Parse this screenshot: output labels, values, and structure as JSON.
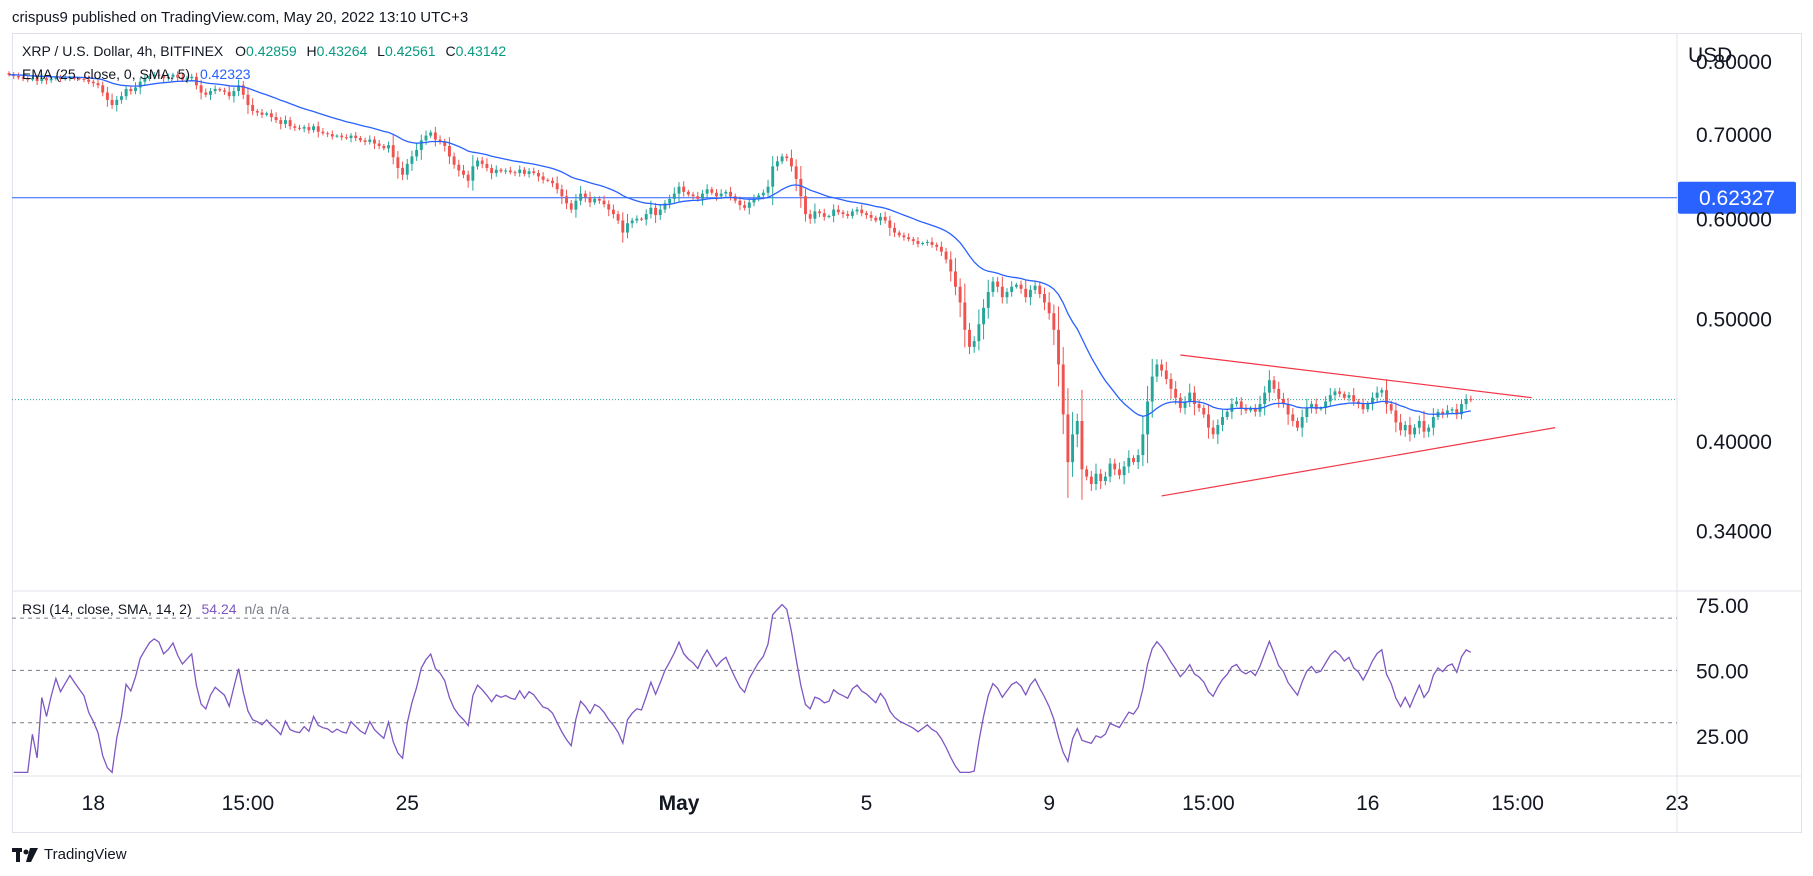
{
  "header": {
    "published_by": "crispus9 published on TradingView.com, May 20, 2022 13:10 UTC+3"
  },
  "legend": {
    "symbol": "XRP / U.S. Dollar, 4h, BITFINEX",
    "open_label": "O",
    "open_value": "0.42859",
    "high_label": "H",
    "high_value": "0.43264",
    "low_label": "L",
    "low_value": "0.42561",
    "close_label": "C",
    "close_value": "0.43142",
    "ema_label": "EMA (25, close, 0, SMA, 5)",
    "ema_value": "0.42323",
    "rsi_label": "RSI (14, close, SMA, 14, 2)",
    "rsi_value": "54.24",
    "rsi_na1": "n/a",
    "rsi_na2": "n/a"
  },
  "footer": {
    "brand": "TradingView"
  },
  "colors": {
    "up": "#26a69a",
    "down": "#ef5350",
    "ema": "#2962ff",
    "rsi": "#7e57c2",
    "level": "#2962ff",
    "triangle": "#f23645",
    "grid_dashed": "#787b86",
    "last_price": "#26a69a"
  },
  "chart_data": {
    "type": "candlestick",
    "title": "XRP / U.S. Dollar, 4h, BITFINEX",
    "currency": "USD",
    "price_ticks": [
      "0.80000",
      "0.70000",
      "0.60000",
      "0.50000",
      "0.40000",
      "0.34000"
    ],
    "price_ticks_numeric": [
      0.8,
      0.7,
      0.6,
      0.5,
      0.4,
      0.34
    ],
    "price_scale": "log",
    "price_range": [
      0.305,
      0.84
    ],
    "horizontal_level": {
      "value": 0.62327,
      "label": "0.62327"
    },
    "last_price": 0.43142,
    "x_ticks": [
      "18",
      "15:00",
      "25",
      "May",
      "5",
      "9",
      "15:00",
      "16",
      "15:00",
      "23"
    ],
    "x_tick_indices": [
      18,
      51,
      85,
      143,
      183,
      222,
      256,
      290,
      322,
      356
    ],
    "x_range_bars": [
      0,
      356
    ],
    "closes": [
      0.78,
      0.778,
      0.776,
      0.775,
      0.773,
      0.775,
      0.771,
      0.775,
      0.772,
      0.774,
      0.776,
      0.774,
      0.775,
      0.776,
      0.775,
      0.774,
      0.773,
      0.77,
      0.768,
      0.765,
      0.755,
      0.745,
      0.738,
      0.745,
      0.75,
      0.76,
      0.757,
      0.762,
      0.77,
      0.774,
      0.778,
      0.78,
      0.779,
      0.775,
      0.777,
      0.78,
      0.776,
      0.773,
      0.775,
      0.777,
      0.765,
      0.755,
      0.752,
      0.757,
      0.76,
      0.758,
      0.756,
      0.75,
      0.757,
      0.765,
      0.752,
      0.738,
      0.73,
      0.728,
      0.725,
      0.727,
      0.722,
      0.718,
      0.713,
      0.718,
      0.71,
      0.708,
      0.707,
      0.709,
      0.705,
      0.71,
      0.703,
      0.701,
      0.7,
      0.697,
      0.698,
      0.696,
      0.695,
      0.698,
      0.695,
      0.692,
      0.69,
      0.693,
      0.688,
      0.685,
      0.682,
      0.686,
      0.671,
      0.658,
      0.65,
      0.663,
      0.672,
      0.68,
      0.692,
      0.698,
      0.702,
      0.693,
      0.69,
      0.685,
      0.672,
      0.662,
      0.655,
      0.65,
      0.643,
      0.66,
      0.667,
      0.663,
      0.658,
      0.652,
      0.656,
      0.654,
      0.655,
      0.653,
      0.652,
      0.656,
      0.651,
      0.654,
      0.652,
      0.648,
      0.644,
      0.643,
      0.64,
      0.633,
      0.625,
      0.617,
      0.61,
      0.62,
      0.628,
      0.624,
      0.618,
      0.622,
      0.62,
      0.616,
      0.61,
      0.605,
      0.598,
      0.585,
      0.595,
      0.598,
      0.6,
      0.599,
      0.605,
      0.612,
      0.604,
      0.61,
      0.617,
      0.622,
      0.628,
      0.636,
      0.63,
      0.627,
      0.625,
      0.622,
      0.628,
      0.633,
      0.629,
      0.625,
      0.628,
      0.63,
      0.625,
      0.62,
      0.615,
      0.612,
      0.618,
      0.622,
      0.626,
      0.629,
      0.636,
      0.66,
      0.666,
      0.672,
      0.67,
      0.66,
      0.645,
      0.625,
      0.605,
      0.6,
      0.608,
      0.606,
      0.602,
      0.603,
      0.61,
      0.607,
      0.605,
      0.603,
      0.608,
      0.61,
      0.606,
      0.604,
      0.601,
      0.598,
      0.602,
      0.598,
      0.59,
      0.585,
      0.582,
      0.58,
      0.578,
      0.576,
      0.573,
      0.574,
      0.575,
      0.572,
      0.57,
      0.565,
      0.557,
      0.545,
      0.53,
      0.515,
      0.49,
      0.475,
      0.48,
      0.495,
      0.51,
      0.525,
      0.535,
      0.53,
      0.52,
      0.525,
      0.53,
      0.532,
      0.528,
      0.52,
      0.527,
      0.531,
      0.523,
      0.515,
      0.505,
      0.49,
      0.46,
      0.42,
      0.385,
      0.405,
      0.415,
      0.38,
      0.375,
      0.37,
      0.377,
      0.372,
      0.375,
      0.384,
      0.38,
      0.376,
      0.382,
      0.388,
      0.385,
      0.39,
      0.405,
      0.43,
      0.45,
      0.46,
      0.455,
      0.448,
      0.44,
      0.433,
      0.425,
      0.43,
      0.437,
      0.428,
      0.425,
      0.42,
      0.41,
      0.405,
      0.412,
      0.418,
      0.422,
      0.428,
      0.43,
      0.425,
      0.423,
      0.425,
      0.422,
      0.428,
      0.437,
      0.447,
      0.44,
      0.432,
      0.428,
      0.42,
      0.415,
      0.41,
      0.418,
      0.425,
      0.428,
      0.424,
      0.425,
      0.43,
      0.435,
      0.438,
      0.436,
      0.433,
      0.435,
      0.43,
      0.428,
      0.424,
      0.428,
      0.433,
      0.437,
      0.439,
      0.428,
      0.423,
      0.414,
      0.408,
      0.412,
      0.405,
      0.41,
      0.415,
      0.407,
      0.41,
      0.418,
      0.422,
      0.42,
      0.423,
      0.424,
      0.42,
      0.428,
      0.432,
      0.431
    ],
    "ema_series_name": "EMA (25, close, 0, SMA, 5)",
    "rsi": {
      "name": "RSI (14, close, SMA, 14, 2)",
      "ticks": [
        "75.00",
        "50.00",
        "25.00"
      ],
      "ticks_numeric": [
        75,
        50,
        25
      ],
      "range": [
        10,
        80
      ],
      "bands": [
        70,
        50,
        30
      ]
    },
    "triangle": {
      "upper": [
        [
          250,
          0.468
        ],
        [
          325,
          0.433
        ]
      ],
      "lower": [
        [
          246,
          0.362
        ],
        [
          330,
          0.41
        ]
      ]
    }
  }
}
